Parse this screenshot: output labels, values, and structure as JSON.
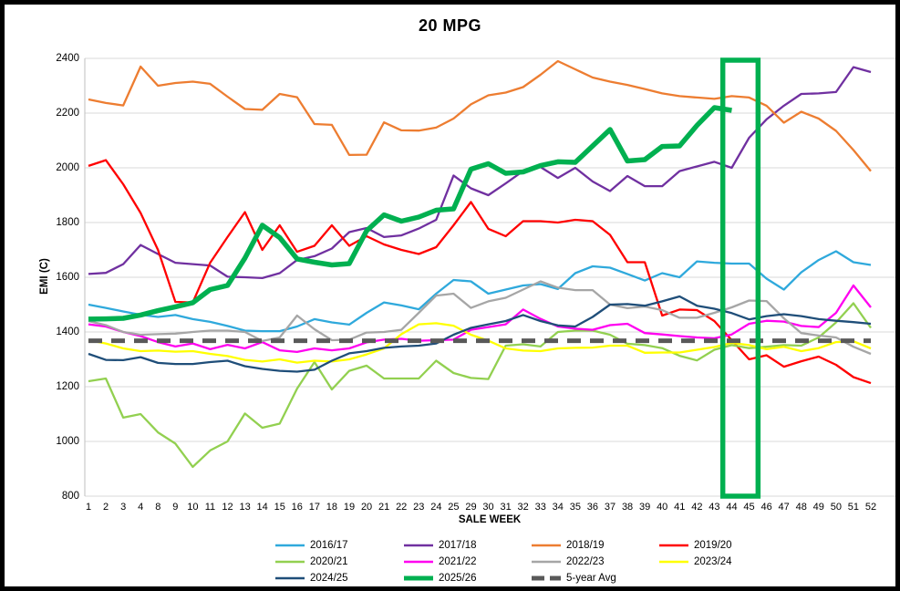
{
  "window": {
    "title": "20 MPG"
  },
  "axes": {
    "y_title": "EMI (C)",
    "x_title": "SALE WEEK"
  },
  "chart_data": {
    "type": "line",
    "title": "20 MPG",
    "xlabel": "SALE WEEK",
    "ylabel": "EMI (C)",
    "ylim": [
      800,
      2400
    ],
    "yticks": [
      800,
      1000,
      1200,
      1400,
      1600,
      1800,
      2000,
      2200,
      2400
    ],
    "grid": "horizontal",
    "legend_position": "bottom",
    "categories": [
      1,
      2,
      3,
      4,
      8,
      9,
      10,
      11,
      12,
      13,
      14,
      15,
      16,
      17,
      18,
      19,
      20,
      21,
      22,
      23,
      24,
      25,
      29,
      30,
      31,
      32,
      33,
      34,
      35,
      36,
      37,
      38,
      39,
      40,
      41,
      42,
      43,
      44,
      45,
      46,
      47,
      48,
      49,
      50,
      51,
      52
    ],
    "highlight_box": {
      "from_week": 44,
      "to_week": 45,
      "color": "#00B050"
    },
    "series": [
      {
        "name": "2016/17",
        "color": "#2FA9DC",
        "thick": false,
        "values": [
          1500,
          1488,
          1475,
          1463,
          1455,
          1462,
          1447,
          1437,
          1422,
          1405,
          1403,
          1403,
          1420,
          1447,
          1435,
          1427,
          1470,
          1508,
          1497,
          1483,
          1540,
          1590,
          1585,
          1540,
          1555,
          1570,
          1575,
          1557,
          1615,
          1640,
          1635,
          1612,
          1588,
          1615,
          1600,
          1658,
          1653,
          1650,
          1650,
          1595,
          1555,
          1618,
          1663,
          1695,
          1655,
          1645
        ]
      },
      {
        "name": "2017/18",
        "color": "#7030A0",
        "thick": false,
        "values": [
          1612,
          1616,
          1648,
          1718,
          1685,
          1653,
          1648,
          1643,
          1602,
          1600,
          1597,
          1615,
          1663,
          1677,
          1705,
          1765,
          1780,
          1747,
          1753,
          1778,
          1810,
          1972,
          1925,
          1900,
          1943,
          1988,
          2003,
          1963,
          2000,
          1950,
          1915,
          1970,
          1933,
          1933,
          1988,
          2005,
          2022,
          2000,
          2110,
          2177,
          2227,
          2270,
          2272,
          2277,
          2368,
          2350
        ]
      },
      {
        "name": "2018/19",
        "color": "#ED7D31",
        "thick": false,
        "values": [
          2250,
          2237,
          2228,
          2370,
          2300,
          2310,
          2315,
          2307,
          2260,
          2215,
          2212,
          2270,
          2258,
          2160,
          2157,
          2047,
          2048,
          2166,
          2137,
          2136,
          2147,
          2180,
          2232,
          2265,
          2275,
          2295,
          2340,
          2390,
          2360,
          2330,
          2315,
          2303,
          2288,
          2272,
          2262,
          2257,
          2252,
          2262,
          2257,
          2227,
          2165,
          2205,
          2180,
          2135,
          2065,
          1988
        ]
      },
      {
        "name": "2019/20",
        "color": "#FF0000",
        "thick": false,
        "values": [
          2007,
          2028,
          1940,
          1835,
          1700,
          1510,
          1508,
          1653,
          1747,
          1838,
          1700,
          1790,
          1693,
          1715,
          1790,
          1715,
          1750,
          1720,
          1700,
          1685,
          1710,
          1790,
          1875,
          1777,
          1750,
          1805,
          1805,
          1800,
          1810,
          1805,
          1755,
          1655,
          1655,
          1460,
          1482,
          1480,
          1440,
          1370,
          1300,
          1315,
          1273,
          1293,
          1310,
          1280,
          1235,
          1213
        ]
      },
      {
        "name": "2020/21",
        "color": "#92D050",
        "thick": false,
        "values": [
          1220,
          1230,
          1087,
          1100,
          1033,
          992,
          907,
          967,
          1000,
          1102,
          1050,
          1065,
          1193,
          1290,
          1190,
          1258,
          1277,
          1230,
          1230,
          1230,
          1295,
          1250,
          1232,
          1228,
          1350,
          1355,
          1347,
          1400,
          1405,
          1405,
          1390,
          1357,
          1352,
          1341,
          1313,
          1296,
          1335,
          1352,
          1341,
          1346,
          1352,
          1350,
          1380,
          1435,
          1505,
          1415
        ]
      },
      {
        "name": "2021/22",
        "color": "#FF00F0",
        "thick": false,
        "values": [
          1428,
          1420,
          1400,
          1385,
          1363,
          1347,
          1358,
          1337,
          1353,
          1340,
          1363,
          1333,
          1327,
          1340,
          1333,
          1340,
          1362,
          1372,
          1375,
          1368,
          1370,
          1372,
          1408,
          1418,
          1428,
          1482,
          1448,
          1420,
          1412,
          1408,
          1425,
          1430,
          1396,
          1391,
          1385,
          1380,
          1377,
          1391,
          1430,
          1441,
          1438,
          1422,
          1418,
          1470,
          1570,
          1490
        ]
      },
      {
        "name": "2022/23",
        "color": "#A6A6A6",
        "thick": false,
        "values": [
          1440,
          1425,
          1400,
          1390,
          1392,
          1394,
          1400,
          1405,
          1405,
          1400,
          1367,
          1380,
          1460,
          1410,
          1370,
          1372,
          1398,
          1400,
          1408,
          1470,
          1533,
          1540,
          1488,
          1512,
          1525,
          1555,
          1585,
          1562,
          1553,
          1553,
          1500,
          1487,
          1493,
          1480,
          1452,
          1452,
          1470,
          1490,
          1515,
          1513,
          1450,
          1396,
          1387,
          1380,
          1346,
          1320
        ]
      },
      {
        "name": "2023/24",
        "color": "#FFFF00",
        "thick": false,
        "values": [
          1370,
          1358,
          1340,
          1330,
          1332,
          1328,
          1330,
          1320,
          1312,
          1298,
          1292,
          1300,
          1288,
          1295,
          1292,
          1300,
          1318,
          1340,
          1392,
          1428,
          1432,
          1423,
          1390,
          1368,
          1340,
          1332,
          1330,
          1340,
          1342,
          1343,
          1350,
          1350,
          1324,
          1325,
          1325,
          1335,
          1345,
          1360,
          1352,
          1337,
          1346,
          1330,
          1341,
          1363,
          1366,
          1340
        ]
      },
      {
        "name": "2024/25",
        "color": "#1F4E79",
        "thick": false,
        "values": [
          1320,
          1298,
          1297,
          1308,
          1287,
          1283,
          1283,
          1290,
          1295,
          1275,
          1265,
          1258,
          1255,
          1262,
          1295,
          1322,
          1330,
          1342,
          1347,
          1350,
          1358,
          1390,
          1415,
          1428,
          1440,
          1462,
          1440,
          1424,
          1420,
          1455,
          1500,
          1502,
          1496,
          1512,
          1530,
          1496,
          1485,
          1469,
          1446,
          1458,
          1465,
          1458,
          1447,
          1441,
          1436,
          1430
        ]
      },
      {
        "name": "2025/26",
        "color": "#00B050",
        "thick": true,
        "values": [
          1447,
          1448,
          1450,
          1462,
          1478,
          1492,
          1507,
          1555,
          1570,
          1670,
          1790,
          1745,
          1667,
          1655,
          1645,
          1650,
          1770,
          1828,
          1805,
          1820,
          1845,
          1850,
          1995,
          2015,
          1980,
          1985,
          2008,
          2022,
          2020,
          2080,
          2140,
          2025,
          2030,
          2078,
          2080,
          2155,
          2220,
          2210
        ]
      },
      {
        "name": "5-year Avg",
        "color": "#595959",
        "thick": true,
        "style": "dashed",
        "avg_value": 1368,
        "values": []
      }
    ]
  },
  "style": {
    "grid_color": "#D9D9D9",
    "axis_line_color": "#BFBFBF",
    "border_color": "#000000",
    "highlight_color": "#00B050"
  }
}
